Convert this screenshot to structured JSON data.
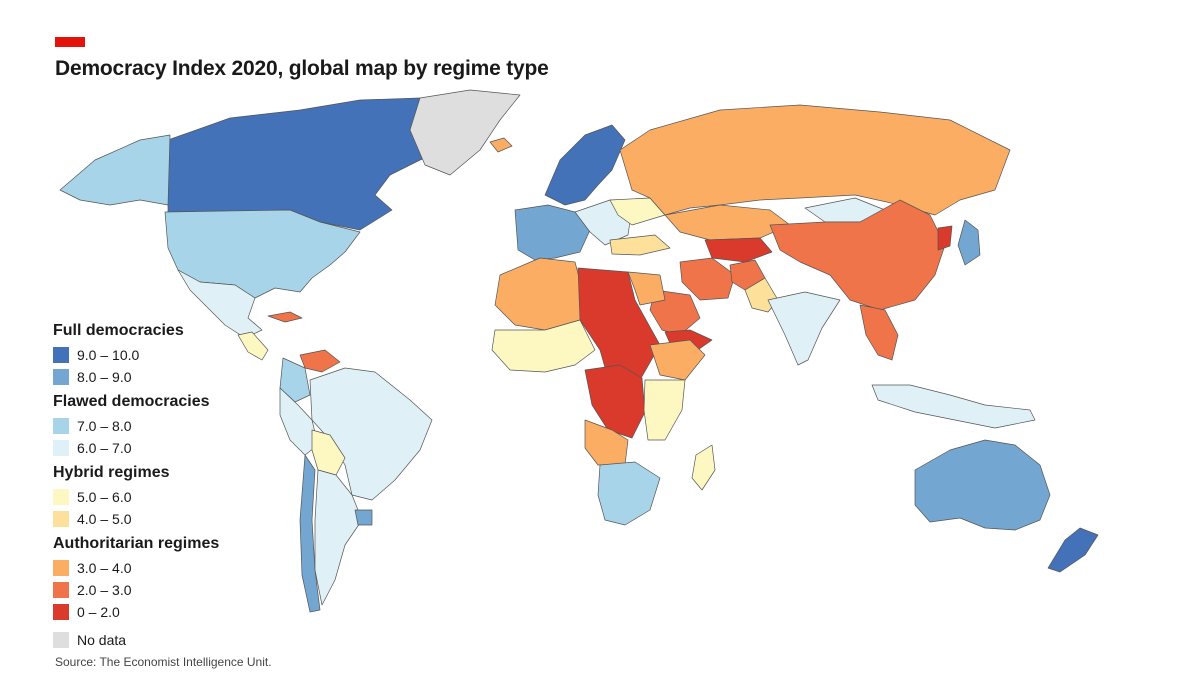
{
  "title": "Democracy Index 2020, global map by regime type",
  "source": "Source: The Economist Intelligence Unit.",
  "colors": {
    "accent": "#e3120b",
    "c9_10": "#4472b8",
    "c8_9": "#73a6d1",
    "c7_8": "#a7d4e8",
    "c6_7": "#dff1f7",
    "c5_6": "#fdf7c1",
    "c4_5": "#fde09a",
    "c3_4": "#fbad64",
    "c2_3": "#f0744a",
    "c0_2": "#d93a2b",
    "nodata": "#dedede",
    "border": "#555555"
  },
  "legend": {
    "groups": [
      {
        "title": "Full democracies",
        "items": [
          {
            "label": "9.0 – 10.0",
            "color": "#4472b8"
          },
          {
            "label": "8.0 – 9.0",
            "color": "#73a6d1"
          }
        ]
      },
      {
        "title": "Flawed democracies",
        "items": [
          {
            "label": "7.0 – 8.0",
            "color": "#a7d4e8"
          },
          {
            "label": "6.0 – 7.0",
            "color": "#dff1f7"
          }
        ]
      },
      {
        "title": "Hybrid regimes",
        "items": [
          {
            "label": "5.0 – 6.0",
            "color": "#fdf7c1"
          },
          {
            "label": "4.0 – 5.0",
            "color": "#fde09a"
          }
        ]
      },
      {
        "title": "Authoritarian regimes",
        "items": [
          {
            "label": "3.0 – 4.0",
            "color": "#fbad64"
          },
          {
            "label": "2.0 – 3.0",
            "color": "#f0744a"
          },
          {
            "label": "0 – 2.0",
            "color": "#d93a2b"
          }
        ]
      }
    ],
    "no_data": {
      "label": "No data",
      "color": "#dedede"
    }
  },
  "regions": [
    {
      "name": "canada",
      "band": "9.0 – 10.0"
    },
    {
      "name": "alaska",
      "band": "7.0 – 8.0"
    },
    {
      "name": "greenland",
      "band": "No data"
    },
    {
      "name": "iceland",
      "band": "3.0 – 4.0"
    },
    {
      "name": "united-states",
      "band": "7.0 – 8.0"
    },
    {
      "name": "mexico",
      "band": "6.0 – 7.0"
    },
    {
      "name": "cuba",
      "band": "2.0 – 3.0"
    },
    {
      "name": "central-america",
      "band": "5.0 – 6.0"
    },
    {
      "name": "venezuela",
      "band": "2.0 – 3.0"
    },
    {
      "name": "colombia",
      "band": "7.0 – 8.0"
    },
    {
      "name": "brazil",
      "band": "6.0 – 7.0"
    },
    {
      "name": "peru",
      "band": "6.0 – 7.0"
    },
    {
      "name": "bolivia",
      "band": "5.0 – 6.0"
    },
    {
      "name": "chile",
      "band": "8.0 – 9.0"
    },
    {
      "name": "argentina",
      "band": "6.0 – 7.0"
    },
    {
      "name": "uruguay",
      "band": "8.0 – 9.0"
    },
    {
      "name": "scandinavia",
      "band": "9.0 – 10.0"
    },
    {
      "name": "western-europe",
      "band": "8.0 – 9.0"
    },
    {
      "name": "eastern-europe",
      "band": "6.0 – 7.0"
    },
    {
      "name": "ukraine",
      "band": "5.0 – 6.0"
    },
    {
      "name": "russia",
      "band": "3.0 – 4.0"
    },
    {
      "name": "kazakhstan",
      "band": "3.0 – 4.0"
    },
    {
      "name": "mongolia",
      "band": "6.0 – 7.0"
    },
    {
      "name": "china",
      "band": "2.0 – 3.0"
    },
    {
      "name": "north-korea",
      "band": "0 – 2.0"
    },
    {
      "name": "japan",
      "band": "8.0 – 9.0"
    },
    {
      "name": "turkey",
      "band": "4.0 – 5.0"
    },
    {
      "name": "central-asia",
      "band": "0 – 2.0"
    },
    {
      "name": "iran",
      "band": "2.0 – 3.0"
    },
    {
      "name": "afghanistan",
      "band": "2.0 – 3.0"
    },
    {
      "name": "pakistan",
      "band": "4.0 – 5.0"
    },
    {
      "name": "india",
      "band": "6.0 – 7.0"
    },
    {
      "name": "saudi-arabia",
      "band": "2.0 – 3.0"
    },
    {
      "name": "yemen",
      "band": "0 – 2.0"
    },
    {
      "name": "north-africa-west",
      "band": "3.0 – 4.0"
    },
    {
      "name": "libya-chad-sudan",
      "band": "0 – 2.0"
    },
    {
      "name": "egypt",
      "band": "3.0 – 4.0"
    },
    {
      "name": "ethiopia",
      "band": "3.0 – 4.0"
    },
    {
      "name": "west-africa",
      "band": "5.0 – 6.0"
    },
    {
      "name": "congo",
      "band": "0 – 2.0"
    },
    {
      "name": "east-africa",
      "band": "5.0 – 6.0"
    },
    {
      "name": "angola",
      "band": "3.0 – 4.0"
    },
    {
      "name": "southern-africa",
      "band": "7.0 – 8.0"
    },
    {
      "name": "madagascar",
      "band": "5.0 – 6.0"
    },
    {
      "name": "southeast-asia",
      "band": "2.0 – 3.0"
    },
    {
      "name": "indonesia",
      "band": "6.0 – 7.0"
    },
    {
      "name": "australia",
      "band": "8.0 – 9.0"
    },
    {
      "name": "new-zealand",
      "band": "9.0 – 10.0"
    }
  ]
}
